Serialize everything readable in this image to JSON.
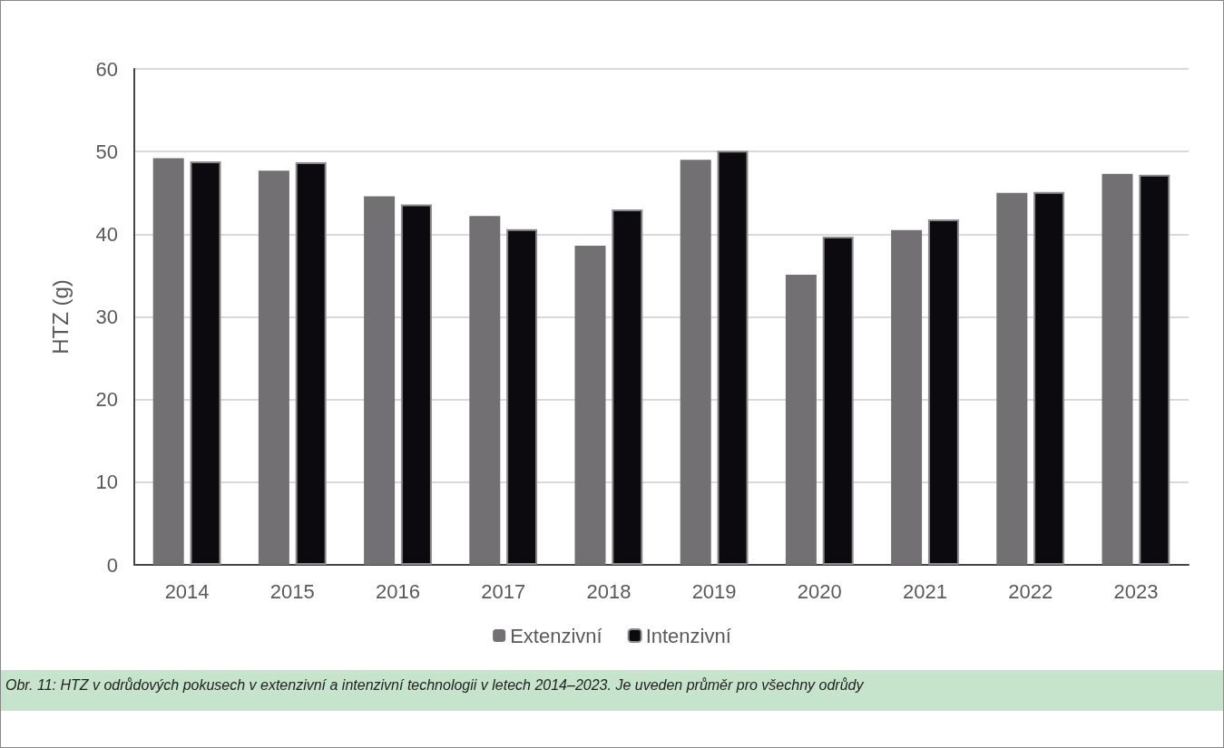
{
  "chart_data": {
    "type": "bar",
    "ylabel": "HTZ (g)",
    "categories": [
      "2014",
      "2015",
      "2016",
      "2017",
      "2018",
      "2019",
      "2020",
      "2021",
      "2022",
      "2023"
    ],
    "series": [
      {
        "name": "Extenzivní",
        "color": "#727072",
        "values": [
          49.2,
          47.7,
          44.6,
          42.2,
          38.6,
          49.0,
          35.1,
          40.5,
          45.0,
          47.3
        ]
      },
      {
        "name": "Intenzivní",
        "color": "#0c0a0e",
        "values": [
          48.8,
          48.7,
          43.6,
          40.6,
          43.0,
          50.1,
          39.7,
          41.8,
          45.1,
          47.2
        ]
      }
    ],
    "ylim": [
      0,
      60
    ],
    "yticks": [
      0,
      10,
      20,
      30,
      40,
      50,
      60
    ],
    "grid": "y",
    "legend": "bottom",
    "annotations": [
      "Obr. 11: HTZ v odrůdových pokusech v extenzivní a intenzivní technologii v letech 2014–2023. Je uveden průměr pro všechny odrůdy"
    ]
  }
}
